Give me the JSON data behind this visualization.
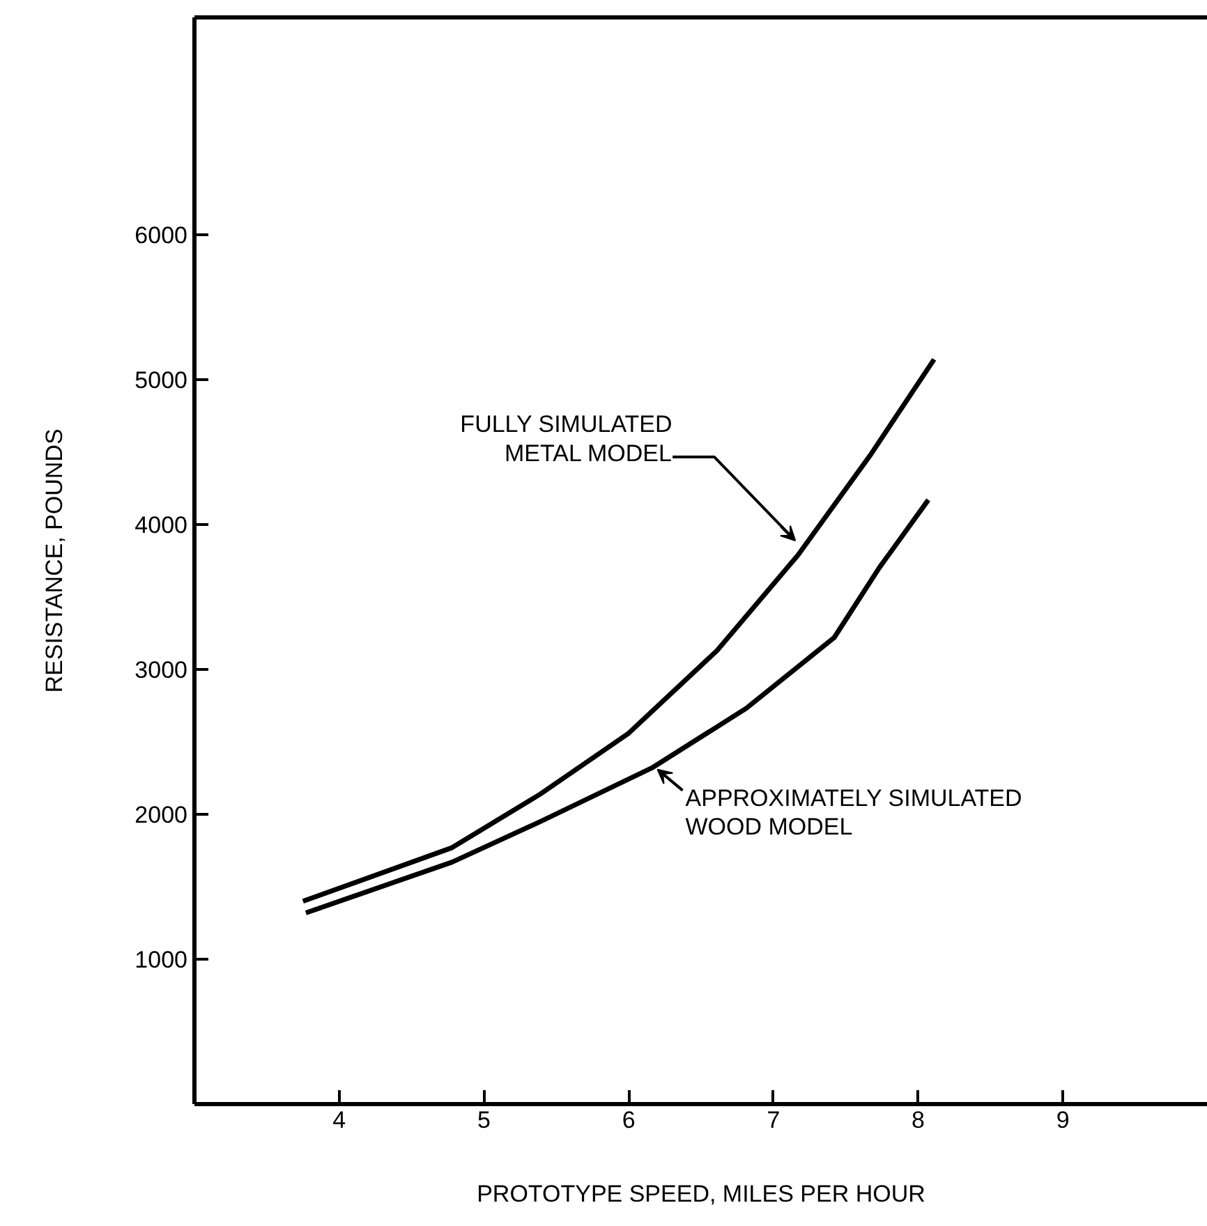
{
  "chart_data": {
    "type": "line",
    "xlabel": "PROTOTYPE SPEED, MILES PER HOUR",
    "ylabel": "RESISTANCE, POUNDS",
    "xlim": [
      3,
      10
    ],
    "ylim": [
      0,
      7500
    ],
    "xticks": [
      4,
      5,
      6,
      7,
      8,
      9
    ],
    "yticks": [
      1000,
      2000,
      3000,
      4000,
      5000,
      6000
    ],
    "line_style": "solid",
    "series": [
      {
        "color": "#000000",
        "x": [
          3.75,
          4.78,
          5.39,
          6.0,
          6.61,
          7.17,
          7.67,
          8.11
        ],
        "values": [
          1400,
          1770,
          2140,
          2560,
          3130,
          3790,
          4480,
          5140
        ]
      },
      {
        "color": "#000000",
        "x": [
          3.77,
          4.78,
          5.39,
          6.16,
          6.81,
          7.42,
          7.73,
          8.07
        ],
        "values": [
          1320,
          1670,
          1950,
          2320,
          2730,
          3220,
          3700,
          4170
        ]
      }
    ],
    "annotations": [
      {
        "text": "FULLY SIMULATED\nMETAL MODEL",
        "x": 7.17,
        "y": 3870
      },
      {
        "text": "APPROXIMATELY SIMULATED\nWOOD MODEL",
        "x": 6.18,
        "y": 2300
      }
    ]
  }
}
